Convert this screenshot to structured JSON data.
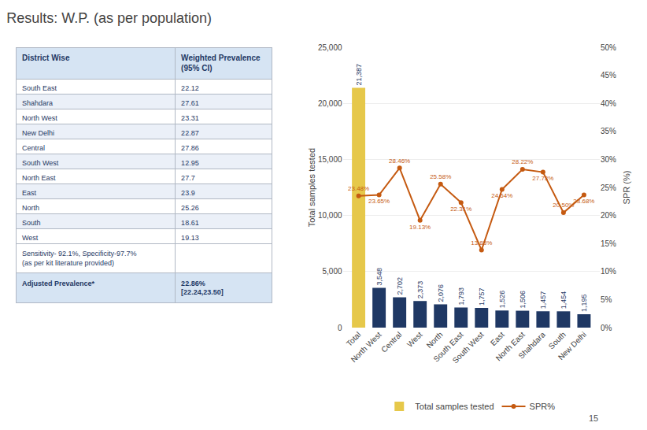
{
  "chart_data": [
    {
      "type": "table",
      "columns": [
        "District Wise",
        "Weighted Prevalence (95% CI)"
      ],
      "rows": [
        [
          "South East",
          "22.12"
        ],
        [
          "Shahdara",
          "27.61"
        ],
        [
          "North West",
          "23.31"
        ],
        [
          "New Delhi",
          "22.87"
        ],
        [
          "Central",
          "27.86"
        ],
        [
          "South West",
          "12.95"
        ],
        [
          "North East",
          "27.7"
        ],
        [
          "East",
          "23.9"
        ],
        [
          "North",
          "25.26"
        ],
        [
          "South",
          "18.61"
        ],
        [
          "West",
          "19.13"
        ]
      ],
      "notes": [
        "Sensitivity- 92.1%, Specificity-97.7%\n(as per kit literature provided)"
      ],
      "summary": [
        "Adjusted Prevalence*",
        "22.86%\n[22.24,23.50]"
      ]
    },
    {
      "type": "bar",
      "title": "Results: W.P. (as per population)",
      "categories": [
        "Total",
        "North West",
        "Central",
        "West",
        "North",
        "South East",
        "South West",
        "East",
        "North East",
        "Shahdara",
        "South",
        "New Delhi"
      ],
      "series": [
        {
          "name": "Total samples tested",
          "type": "bar",
          "colors": [
            "#e6c84a",
            "#1f3864",
            "#1f3864",
            "#1f3864",
            "#1f3864",
            "#1f3864",
            "#1f3864",
            "#1f3864",
            "#1f3864",
            "#1f3864",
            "#1f3864",
            "#1f3864"
          ],
          "values": [
            21387,
            3548,
            2702,
            2373,
            2076,
            1793,
            1757,
            1526,
            1506,
            1457,
            1454,
            1195
          ],
          "value_labels": [
            "21,387",
            "3,548",
            "2,702",
            "2,373",
            "2,076",
            "1,793",
            "1,757",
            "1,526",
            "1,506",
            "1,457",
            "1,454",
            "1,195"
          ]
        },
        {
          "name": "SPR%",
          "type": "line",
          "axis": "y2",
          "color": "#c55a11",
          "marker": "circle",
          "values": [
            23.48,
            23.65,
            28.46,
            19.13,
            25.58,
            22.31,
            13.83,
            24.64,
            28.22,
            27.73,
            20.5,
            23.68
          ],
          "value_labels": [
            "23.48%",
            "23.65%",
            "28.46%",
            "19.13%",
            "25.58%",
            "22.31%",
            "13.83%",
            "24.64%",
            "28.22%",
            "27.73%",
            "20.50%",
            "23.68%"
          ]
        }
      ],
      "ylabel": "Total samples tested",
      "y2label": "SPR (%)",
      "ylim": [
        0,
        25000
      ],
      "yticks": [
        0,
        {
          "value": 5000,
          "label": "5,000"
        },
        {
          "value": 10000,
          "label": "10,000"
        },
        {
          "value": 15000,
          "label": "15,000"
        },
        {
          "value": 20000,
          "label": "20,000"
        },
        {
          "value": 25000,
          "label": "25,000"
        }
      ],
      "y2lim": [
        0,
        50
      ],
      "y2ticks": [
        {
          "value": 0,
          "label": "0%"
        },
        {
          "value": 5,
          "label": "5%"
        },
        {
          "value": 10,
          "label": "10%"
        },
        {
          "value": 15,
          "label": "15%"
        },
        {
          "value": 20,
          "label": "20%"
        },
        {
          "value": 25,
          "label": "25%"
        },
        {
          "value": 30,
          "label": "30%"
        },
        {
          "value": 35,
          "label": "35%"
        },
        {
          "value": 40,
          "label": "40%"
        },
        {
          "value": 45,
          "label": "45%"
        },
        {
          "value": 50,
          "label": "50%"
        }
      ],
      "grid": true,
      "legend": "bottom",
      "data_labels": true,
      "annotations": [
        "15"
      ]
    }
  ]
}
